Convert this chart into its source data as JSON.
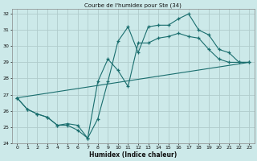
{
  "title": "Courbe de l'humidex pour Ste (34)",
  "xlabel": "Humidex (Indice chaleur)",
  "xlim": [
    -0.5,
    23.5
  ],
  "ylim": [
    24,
    32.3
  ],
  "yticks": [
    24,
    25,
    26,
    27,
    28,
    29,
    30,
    31,
    32
  ],
  "xticks": [
    0,
    1,
    2,
    3,
    4,
    5,
    6,
    7,
    8,
    9,
    10,
    11,
    12,
    13,
    14,
    15,
    16,
    17,
    18,
    19,
    20,
    21,
    22,
    23
  ],
  "bg_color": "#cce9e9",
  "grid_color": "#b0cccc",
  "line_color": "#1a6e6e",
  "line1_x": [
    0,
    1,
    2,
    3,
    4,
    5,
    6,
    7,
    8,
    9,
    10,
    11,
    12,
    13,
    14,
    15,
    16,
    17,
    18,
    19,
    20,
    21,
    22,
    23
  ],
  "line1_y": [
    26.8,
    26.1,
    25.8,
    25.6,
    25.1,
    25.1,
    24.8,
    24.3,
    25.5,
    27.8,
    30.3,
    31.2,
    29.6,
    31.2,
    31.3,
    31.3,
    31.7,
    32.0,
    31.0,
    30.7,
    29.8,
    29.6,
    29.0,
    29.0
  ],
  "line2_x": [
    0,
    1,
    2,
    3,
    4,
    5,
    6,
    7,
    8,
    9,
    10,
    11,
    12,
    13,
    14,
    15,
    16,
    17,
    18,
    19,
    20,
    21,
    22,
    23
  ],
  "line2_y": [
    26.8,
    26.1,
    25.8,
    25.6,
    25.1,
    25.2,
    25.1,
    24.3,
    27.8,
    29.2,
    28.5,
    27.5,
    30.2,
    30.2,
    30.5,
    30.6,
    30.8,
    30.6,
    30.5,
    29.8,
    29.2,
    29.0,
    29.0,
    29.0
  ],
  "line3_x": [
    0,
    23
  ],
  "line3_y": [
    26.8,
    29.0
  ]
}
